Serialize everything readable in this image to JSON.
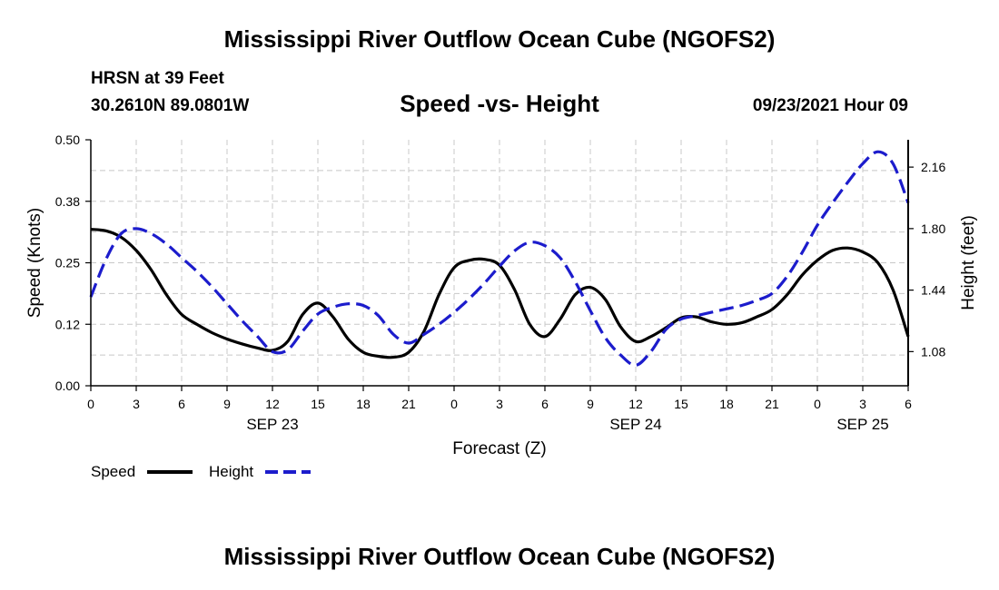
{
  "header": {
    "title": "Mississippi River Outflow Ocean Cube (NGOFS2)",
    "station": "HRSN at 39 Feet",
    "coordinates": "30.2610N  89.0801W",
    "subtitle": "Speed -vs- Height",
    "timestamp": "09/23/2021 Hour 09"
  },
  "footer": {
    "title": "Mississippi River Outflow Ocean Cube (NGOFS2)"
  },
  "chart_data": {
    "type": "line",
    "title": "Speed -vs- Height",
    "xlabel": "Forecast (Z)",
    "ylabel": "Speed (Knots)",
    "y2label": "Height (feet)",
    "xlim": [
      0,
      54
    ],
    "ylim": [
      0,
      0.5
    ],
    "y2lim": [
      0.88,
      2.32
    ],
    "x_ticks": [
      0,
      3,
      6,
      9,
      12,
      15,
      18,
      21,
      24,
      27,
      30,
      33,
      36,
      39,
      42,
      45,
      48,
      51,
      54
    ],
    "x_tick_labels": [
      "0",
      "3",
      "6",
      "9",
      "12",
      "15",
      "18",
      "21",
      "0",
      "3",
      "6",
      "9",
      "12",
      "15",
      "18",
      "21",
      "0",
      "3",
      "6"
    ],
    "day_labels": [
      {
        "x": 12,
        "label": "SEP 23"
      },
      {
        "x": 36,
        "label": "SEP 24"
      },
      {
        "x": 51,
        "label": "SEP 25"
      }
    ],
    "y_ticks": [
      0.0,
      0.125,
      0.25,
      0.375,
      0.5
    ],
    "y_tick_labels": [
      "0.00",
      "0.12",
      "0.25",
      "0.38",
      "0.50"
    ],
    "y2_ticks": [
      1.08,
      1.44,
      1.8,
      2.16
    ],
    "y2_tick_labels": [
      "1.08",
      "1.44",
      "1.80",
      "2.16"
    ],
    "grid": true,
    "legend": "bottom-left",
    "series": [
      {
        "name": "Speed",
        "axis": "left",
        "color": "#000000",
        "dash": "solid",
        "x": [
          0,
          1,
          2,
          3,
          4,
          5,
          6,
          7,
          8,
          9,
          10,
          11,
          12,
          13,
          14,
          15,
          16,
          17,
          18,
          19,
          20,
          21,
          22,
          23,
          24,
          25,
          26,
          27,
          28,
          29,
          30,
          31,
          32,
          33,
          34,
          35,
          36,
          37,
          38,
          39,
          40,
          41,
          42,
          43,
          44,
          45,
          46,
          47,
          48,
          49,
          50,
          51,
          52,
          53,
          54
        ],
        "y": [
          0.318,
          0.315,
          0.302,
          0.275,
          0.235,
          0.185,
          0.145,
          0.125,
          0.108,
          0.095,
          0.085,
          0.077,
          0.072,
          0.09,
          0.145,
          0.168,
          0.14,
          0.095,
          0.068,
          0.06,
          0.058,
          0.068,
          0.11,
          0.185,
          0.24,
          0.255,
          0.257,
          0.245,
          0.195,
          0.125,
          0.1,
          0.135,
          0.185,
          0.2,
          0.175,
          0.12,
          0.09,
          0.1,
          0.118,
          0.138,
          0.14,
          0.13,
          0.125,
          0.128,
          0.14,
          0.155,
          0.185,
          0.225,
          0.255,
          0.275,
          0.28,
          0.272,
          0.25,
          0.195,
          0.1
        ]
      },
      {
        "name": "Height",
        "axis": "right",
        "color": "#1c1ccc",
        "dash": "dashed",
        "x": [
          0,
          1,
          2,
          3,
          4,
          5,
          6,
          7,
          8,
          9,
          10,
          11,
          12,
          13,
          14,
          15,
          16,
          17,
          18,
          19,
          20,
          21,
          22,
          23,
          24,
          25,
          26,
          27,
          28,
          29,
          30,
          31,
          32,
          33,
          34,
          35,
          36,
          37,
          38,
          39,
          40,
          41,
          42,
          43,
          44,
          45,
          46,
          47,
          48,
          49,
          50,
          51,
          52,
          53,
          54
        ],
        "y": [
          1.4,
          1.62,
          1.77,
          1.8,
          1.77,
          1.71,
          1.63,
          1.55,
          1.46,
          1.36,
          1.26,
          1.17,
          1.08,
          1.09,
          1.2,
          1.3,
          1.34,
          1.36,
          1.35,
          1.29,
          1.18,
          1.13,
          1.18,
          1.24,
          1.31,
          1.39,
          1.48,
          1.58,
          1.67,
          1.72,
          1.7,
          1.63,
          1.49,
          1.32,
          1.16,
          1.06,
          1.0,
          1.08,
          1.21,
          1.27,
          1.29,
          1.31,
          1.33,
          1.35,
          1.38,
          1.42,
          1.52,
          1.66,
          1.82,
          1.95,
          2.07,
          2.18,
          2.25,
          2.18,
          1.95
        ]
      }
    ]
  }
}
